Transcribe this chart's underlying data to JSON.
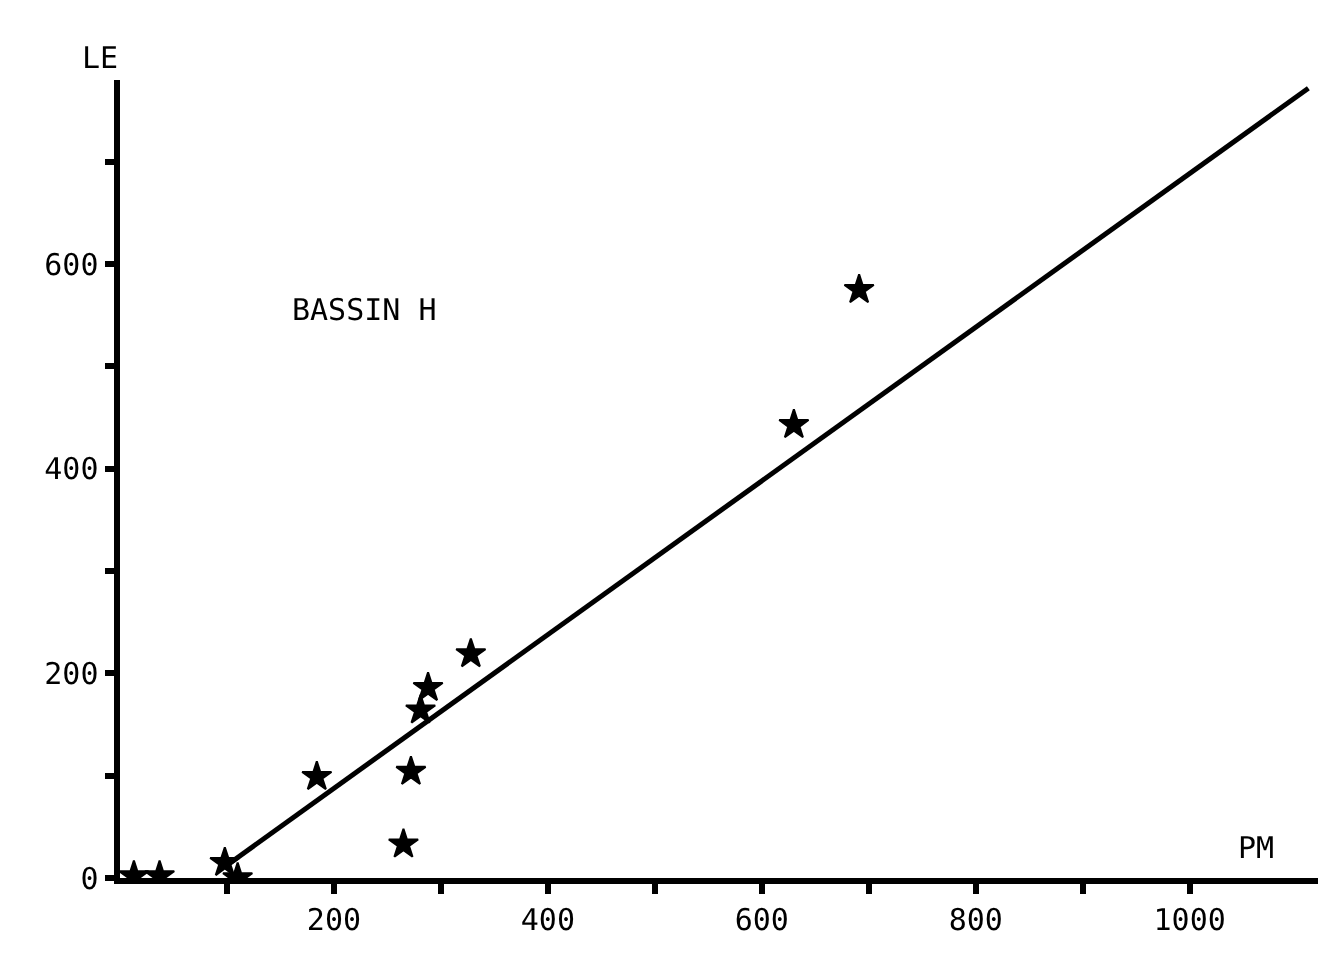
{
  "chart_data": {
    "type": "scatter",
    "xlabel": "PM",
    "ylabel": "LE",
    "annotations": [
      "BASSIN H"
    ],
    "xlim": [
      0,
      1120
    ],
    "ylim": [
      0,
      780
    ],
    "xticks": [
      {
        "value": 100,
        "label": null
      },
      200,
      {
        "value": 300,
        "label": null
      },
      400,
      {
        "value": 500,
        "label": null
      },
      600,
      {
        "value": 700,
        "label": null
      },
      800,
      {
        "value": 900,
        "label": null
      },
      1000
    ],
    "yticks": [
      0,
      {
        "value": 100,
        "label": null
      },
      200,
      {
        "value": 300,
        "label": null
      },
      400,
      {
        "value": 500,
        "label": null
      },
      600,
      {
        "value": 700,
        "label": null
      }
    ],
    "series": [
      {
        "color": "#000000",
        "marker": "star",
        "x": [
          13,
          37,
          98,
          110,
          184,
          265,
          272,
          281,
          288,
          328,
          630,
          691
        ],
        "values": [
          2,
          2,
          15,
          0,
          99,
          33,
          104,
          164,
          186,
          219,
          443,
          575
        ]
      },
      {
        "type": "line",
        "color": "#000000",
        "line_style": "solid",
        "x": [
          98,
          1111
        ],
        "values": [
          11,
          772
        ]
      }
    ]
  }
}
